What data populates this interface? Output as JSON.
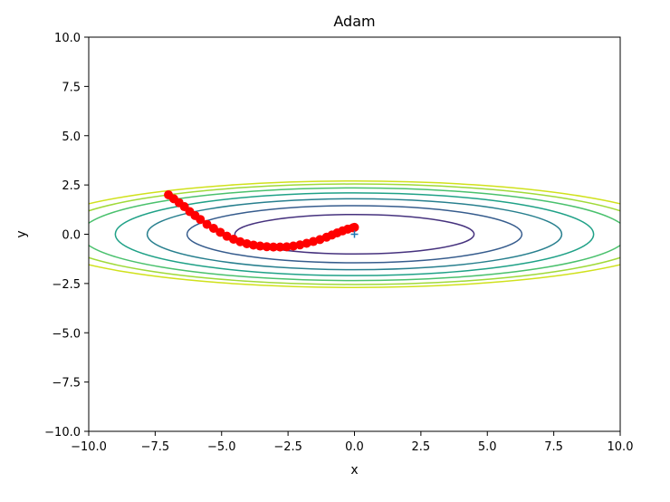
{
  "chart_data": {
    "type": "line",
    "title": "Adam",
    "xlabel": "x",
    "ylabel": "y",
    "xlim": [
      -10,
      10
    ],
    "ylim": [
      -10,
      10
    ],
    "xticks": [
      -10,
      -7.5,
      -5,
      -2.5,
      0,
      2.5,
      5,
      7.5,
      10
    ],
    "yticks": [
      -10,
      -7.5,
      -5,
      -2.5,
      0,
      2.5,
      5,
      7.5,
      10
    ],
    "xtick_labels": [
      "−10.0",
      "−7.5",
      "−5.0",
      "−2.5",
      "0.0",
      "2.5",
      "5.0",
      "7.5",
      "10.0"
    ],
    "ytick_labels": [
      "−10.0",
      "−7.5",
      "−5.0",
      "−2.5",
      "0.0",
      "2.5",
      "5.0",
      "7.5",
      "10.0"
    ],
    "grid": false,
    "contours": [
      {
        "a": 4.5,
        "b": 1.0,
        "color": "#46327e"
      },
      {
        "a": 6.3,
        "b": 1.45,
        "color": "#365c8d"
      },
      {
        "a": 7.8,
        "b": 1.8,
        "color": "#277f8e"
      },
      {
        "a": 9.0,
        "b": 2.1,
        "color": "#1fa187"
      },
      {
        "a": 10.3,
        "b": 2.35,
        "color": "#4ac16d"
      },
      {
        "a": 11.3,
        "b": 2.55,
        "color": "#a0da39"
      },
      {
        "a": 12.2,
        "b": 2.7,
        "color": "#d0e11c"
      }
    ],
    "minimum_marker": {
      "x": 0,
      "y": 0,
      "color": "#1f77b4"
    },
    "path_color": "#ff0000",
    "path": [
      {
        "x": -7.0,
        "y": 2.0
      },
      {
        "x": -6.8,
        "y": 1.8
      },
      {
        "x": -6.6,
        "y": 1.6
      },
      {
        "x": -6.4,
        "y": 1.4
      },
      {
        "x": -6.2,
        "y": 1.15
      },
      {
        "x": -6.0,
        "y": 0.95
      },
      {
        "x": -5.8,
        "y": 0.75
      },
      {
        "x": -5.55,
        "y": 0.5
      },
      {
        "x": -5.3,
        "y": 0.3
      },
      {
        "x": -5.05,
        "y": 0.1
      },
      {
        "x": -4.8,
        "y": -0.1
      },
      {
        "x": -4.55,
        "y": -0.25
      },
      {
        "x": -4.3,
        "y": -0.38
      },
      {
        "x": -4.05,
        "y": -0.48
      },
      {
        "x": -3.8,
        "y": -0.55
      },
      {
        "x": -3.55,
        "y": -0.6
      },
      {
        "x": -3.3,
        "y": -0.63
      },
      {
        "x": -3.05,
        "y": -0.65
      },
      {
        "x": -2.8,
        "y": -0.65
      },
      {
        "x": -2.55,
        "y": -0.64
      },
      {
        "x": -2.3,
        "y": -0.6
      },
      {
        "x": -2.05,
        "y": -0.54
      },
      {
        "x": -1.8,
        "y": -0.46
      },
      {
        "x": -1.55,
        "y": -0.37
      },
      {
        "x": -1.3,
        "y": -0.27
      },
      {
        "x": -1.05,
        "y": -0.15
      },
      {
        "x": -0.85,
        "y": -0.04
      },
      {
        "x": -0.65,
        "y": 0.07
      },
      {
        "x": -0.45,
        "y": 0.17
      },
      {
        "x": -0.25,
        "y": 0.26
      },
      {
        "x": -0.05,
        "y": 0.33
      },
      {
        "x": 0.0,
        "y": 0.35
      }
    ]
  }
}
